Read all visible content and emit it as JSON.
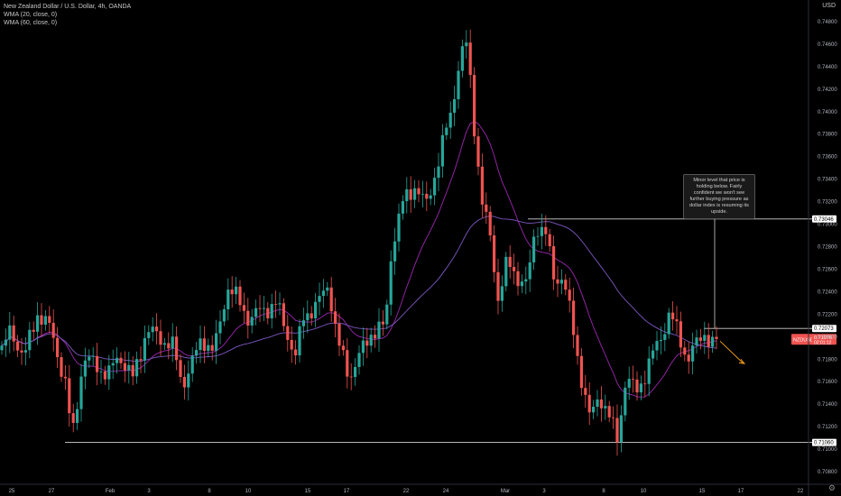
{
  "legend": {
    "symbol_line": "New Zealand Dollar / U.S. Dollar, 4h, OANDA",
    "wma20": "WMA (20, close, 0)",
    "wma60": "WMA (60, close, 0)"
  },
  "currency": "USD",
  "annotation": "Minor level that price is holding below. Fairly confident we won't see further buying pressure as dollar index is resuming its upside.",
  "price_tag": {
    "symbol": "NZDUSD",
    "value": "0.71976",
    "timer": "02:01:12"
  },
  "colors": {
    "up": "#26a69a",
    "down": "#ef5350",
    "wma20": "#9c27b0",
    "wma60": "#7e57c2",
    "line": "#d0d0d0",
    "arrow": "#f7a21b"
  },
  "chart_data": {
    "type": "candlestick",
    "title": "New Zealand Dollar / U.S. Dollar, 4h, OANDA",
    "xlabel": "",
    "ylabel": "USD",
    "ylim": [
      0.7072,
      0.7488
    ],
    "x_ticks": [
      "25",
      "27",
      "Feb",
      "3",
      "8",
      "10",
      "15",
      "17",
      "22",
      "24",
      "Mar",
      "3",
      "8",
      "10",
      "15",
      "17",
      "22"
    ],
    "y_ticks": [
      "0.70800",
      "0.71000",
      "0.71200",
      "0.71400",
      "0.71600",
      "0.71800",
      "0.72000",
      "0.72200",
      "0.72400",
      "0.72600",
      "0.72800",
      "0.73000",
      "0.73200",
      "0.73400",
      "0.73600",
      "0.73800",
      "0.74000",
      "0.74200",
      "0.74400",
      "0.74600",
      "0.74800"
    ],
    "level_labels": [
      {
        "label": "0.73046",
        "value": 0.73046
      },
      {
        "label": "0.72073",
        "value": 0.72073
      },
      {
        "label": "0.71060",
        "value": 0.7106
      }
    ],
    "close_anchors": [
      {
        "x": 0,
        "close": 0.7188
      },
      {
        "x": 10,
        "close": 0.7205
      },
      {
        "x": 25,
        "close": 0.7182
      },
      {
        "x": 40,
        "close": 0.7222
      },
      {
        "x": 55,
        "close": 0.7205
      },
      {
        "x": 70,
        "close": 0.716
      },
      {
        "x": 78,
        "close": 0.711
      },
      {
        "x": 90,
        "close": 0.718
      },
      {
        "x": 105,
        "close": 0.7175
      },
      {
        "x": 118,
        "close": 0.7165
      },
      {
        "x": 130,
        "close": 0.7185
      },
      {
        "x": 145,
        "close": 0.7162
      },
      {
        "x": 160,
        "close": 0.7205
      },
      {
        "x": 175,
        "close": 0.72
      },
      {
        "x": 190,
        "close": 0.719
      },
      {
        "x": 200,
        "close": 0.7158
      },
      {
        "x": 212,
        "close": 0.7178
      },
      {
        "x": 222,
        "close": 0.72
      },
      {
        "x": 235,
        "close": 0.7185
      },
      {
        "x": 250,
        "close": 0.7245
      },
      {
        "x": 262,
        "close": 0.7232
      },
      {
        "x": 275,
        "close": 0.7215
      },
      {
        "x": 290,
        "close": 0.7225
      },
      {
        "x": 305,
        "close": 0.7228
      },
      {
        "x": 318,
        "close": 0.72
      },
      {
        "x": 325,
        "close": 0.718
      },
      {
        "x": 335,
        "close": 0.722
      },
      {
        "x": 350,
        "close": 0.7228
      },
      {
        "x": 362,
        "close": 0.7248
      },
      {
        "x": 372,
        "close": 0.7195
      },
      {
        "x": 385,
        "close": 0.7165
      },
      {
        "x": 398,
        "close": 0.7185
      },
      {
        "x": 410,
        "close": 0.7205
      },
      {
        "x": 425,
        "close": 0.7208
      },
      {
        "x": 432,
        "close": 0.728
      },
      {
        "x": 445,
        "close": 0.732
      },
      {
        "x": 458,
        "close": 0.7335
      },
      {
        "x": 470,
        "close": 0.7315
      },
      {
        "x": 485,
        "close": 0.736
      },
      {
        "x": 498,
        "close": 0.74
      },
      {
        "x": 508,
        "close": 0.745
      },
      {
        "x": 516,
        "close": 0.746
      },
      {
        "x": 522,
        "close": 0.74
      },
      {
        "x": 532,
        "close": 0.732
      },
      {
        "x": 542,
        "close": 0.7285
      },
      {
        "x": 550,
        "close": 0.7235
      },
      {
        "x": 560,
        "close": 0.7265
      },
      {
        "x": 570,
        "close": 0.7255
      },
      {
        "x": 582,
        "close": 0.7245
      },
      {
        "x": 592,
        "close": 0.73
      },
      {
        "x": 602,
        "close": 0.7295
      },
      {
        "x": 612,
        "close": 0.725
      },
      {
        "x": 622,
        "close": 0.7255
      },
      {
        "x": 632,
        "close": 0.721
      },
      {
        "x": 642,
        "close": 0.7165
      },
      {
        "x": 652,
        "close": 0.7125
      },
      {
        "x": 662,
        "close": 0.715
      },
      {
        "x": 672,
        "close": 0.713
      },
      {
        "x": 682,
        "close": 0.711
      },
      {
        "x": 692,
        "close": 0.7165
      },
      {
        "x": 702,
        "close": 0.715
      },
      {
        "x": 712,
        "close": 0.7165
      },
      {
        "x": 722,
        "close": 0.7185
      },
      {
        "x": 730,
        "close": 0.72
      },
      {
        "x": 740,
        "close": 0.722
      },
      {
        "x": 750,
        "close": 0.7202
      },
      {
        "x": 760,
        "close": 0.718
      },
      {
        "x": 768,
        "close": 0.719
      },
      {
        "x": 778,
        "close": 0.7205
      },
      {
        "x": 788,
        "close": 0.7192
      },
      {
        "x": 795,
        "close": 0.7198
      }
    ]
  }
}
